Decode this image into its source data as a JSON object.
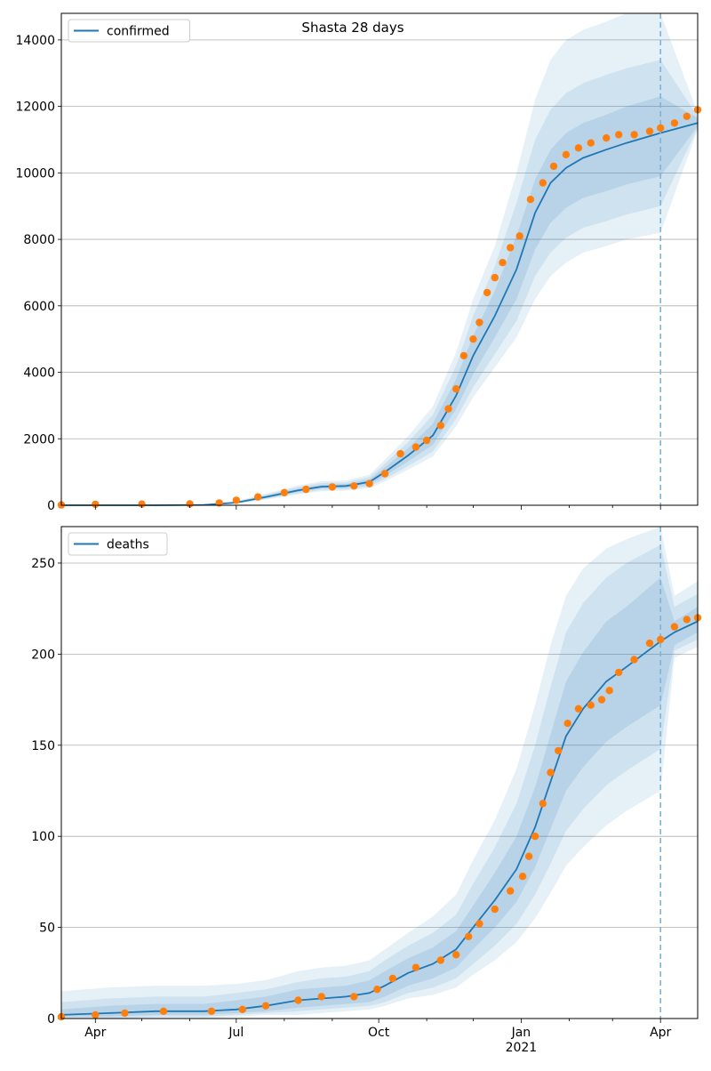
{
  "title": "Shasta 28 days",
  "colors": {
    "model_line": "#1f77b4",
    "observed_points": "#ff7f0e",
    "band": "#1f77b4",
    "forecast_marker": "#7fb3d5",
    "grid": "#b0b0b0"
  },
  "x_axis": {
    "tick_labels": [
      "Apr",
      "Jul",
      "Oct",
      "Jan",
      "Apr"
    ],
    "year_label": "2021"
  },
  "forecast_start": "2021-04-01",
  "chart_data": [
    {
      "type": "line",
      "name": "confirmed",
      "legend_label": "confirmed",
      "legend_position": "upper-left",
      "grid": "horizontal",
      "x_range": [
        "2020-03-10",
        "2021-04-25"
      ],
      "ylim": [
        0,
        14800
      ],
      "yticks": [
        0,
        2000,
        4000,
        6000,
        8000,
        10000,
        12000,
        14000
      ],
      "ytick_labels": [
        "0",
        "2000",
        "4000",
        "6000",
        "8000",
        "10000",
        "12000",
        "14000"
      ],
      "model": {
        "x": [
          "2020-03-10",
          "2020-04-10",
          "2020-05-10",
          "2020-06-10",
          "2020-07-01",
          "2020-07-20",
          "2020-08-10",
          "2020-08-25",
          "2020-09-10",
          "2020-09-25",
          "2020-10-05",
          "2020-10-20",
          "2020-11-05",
          "2020-11-20",
          "2020-12-01",
          "2020-12-15",
          "2020-12-29",
          "2021-01-10",
          "2021-01-20",
          "2021-01-30",
          "2021-02-10",
          "2021-02-25",
          "2021-03-10",
          "2021-04-01",
          "2021-04-25"
        ],
        "y": [
          0,
          0,
          0,
          10,
          80,
          250,
          450,
          560,
          580,
          700,
          1000,
          1500,
          2100,
          3300,
          4500,
          5700,
          7100,
          8800,
          9700,
          10150,
          10450,
          10700,
          10900,
          11200,
          11500
        ],
        "band_1": [
          [
            0,
            0
          ],
          [
            0,
            0
          ],
          [
            0,
            0
          ],
          [
            5,
            15
          ],
          [
            65,
            95
          ],
          [
            215,
            285
          ],
          [
            400,
            500
          ],
          [
            505,
            615
          ],
          [
            525,
            640
          ],
          [
            630,
            780
          ],
          [
            880,
            1140
          ],
          [
            1320,
            1720
          ],
          [
            1820,
            2460
          ],
          [
            2900,
            3800
          ],
          [
            3950,
            5100
          ],
          [
            5050,
            6450
          ],
          [
            6200,
            8100
          ],
          [
            7700,
            9800
          ],
          [
            8500,
            10700
          ],
          [
            8950,
            11200
          ],
          [
            9250,
            11500
          ],
          [
            9450,
            11750
          ],
          [
            9650,
            12000
          ],
          [
            9900,
            12300
          ],
          [
            11400,
            11650
          ]
        ],
        "band_2": [
          [
            0,
            0
          ],
          [
            0,
            0
          ],
          [
            0,
            0
          ],
          [
            3,
            18
          ],
          [
            55,
            110
          ],
          [
            190,
            320
          ],
          [
            360,
            550
          ],
          [
            460,
            670
          ],
          [
            480,
            690
          ],
          [
            570,
            850
          ],
          [
            790,
            1250
          ],
          [
            1180,
            1900
          ],
          [
            1620,
            2720
          ],
          [
            2600,
            4200
          ],
          [
            3550,
            5700
          ],
          [
            4550,
            7200
          ],
          [
            5550,
            9100
          ],
          [
            6900,
            11000
          ],
          [
            7600,
            11900
          ],
          [
            8050,
            12400
          ],
          [
            8350,
            12700
          ],
          [
            8550,
            12950
          ],
          [
            8750,
            13150
          ],
          [
            9000,
            13400
          ],
          [
            11350,
            11700
          ]
        ],
        "band_3": [
          [
            0,
            0
          ],
          [
            0,
            0
          ],
          [
            0,
            0
          ],
          [
            1,
            22
          ],
          [
            45,
            125
          ],
          [
            170,
            350
          ],
          [
            330,
            600
          ],
          [
            420,
            720
          ],
          [
            440,
            750
          ],
          [
            520,
            920
          ],
          [
            720,
            1370
          ],
          [
            1070,
            2080
          ],
          [
            1470,
            2980
          ],
          [
            2380,
            4600
          ],
          [
            3250,
            6200
          ],
          [
            4150,
            7800
          ],
          [
            5050,
            10000
          ],
          [
            6200,
            12200
          ],
          [
            6900,
            13400
          ],
          [
            7300,
            14000
          ],
          [
            7600,
            14300
          ],
          [
            7800,
            14550
          ],
          [
            8000,
            14800
          ],
          [
            8200,
            14800
          ],
          [
            11300,
            11800
          ]
        ]
      },
      "observed": {
        "x": [
          "2020-03-10",
          "2020-04-01",
          "2020-05-01",
          "2020-06-01",
          "2020-06-20",
          "2020-07-01",
          "2020-07-15",
          "2020-08-01",
          "2020-08-15",
          "2020-09-01",
          "2020-09-15",
          "2020-09-25",
          "2020-10-05",
          "2020-10-15",
          "2020-10-25",
          "2020-11-01",
          "2020-11-10",
          "2020-11-15",
          "2020-11-20",
          "2020-11-25",
          "2020-12-01",
          "2020-12-05",
          "2020-12-10",
          "2020-12-15",
          "2020-12-20",
          "2020-12-25",
          "2020-12-31",
          "2021-01-07",
          "2021-01-15",
          "2021-01-22",
          "2021-01-30",
          "2021-02-07",
          "2021-02-15",
          "2021-02-25",
          "2021-03-05",
          "2021-03-15",
          "2021-03-25",
          "2021-04-01",
          "2021-04-10",
          "2021-04-18",
          "2021-04-25"
        ],
        "y": [
          10,
          30,
          35,
          40,
          70,
          150,
          250,
          380,
          480,
          550,
          580,
          650,
          950,
          1550,
          1750,
          1950,
          2400,
          2900,
          3500,
          4500,
          5000,
          5500,
          6400,
          6850,
          7300,
          7750,
          8100,
          9200,
          9700,
          10200,
          10550,
          10750,
          10900,
          11050,
          11150,
          11150,
          11250,
          11350,
          11500,
          11700,
          11900
        ]
      }
    },
    {
      "type": "line",
      "name": "deaths",
      "legend_label": "deaths",
      "legend_position": "upper-left",
      "grid": "horizontal",
      "x_range": [
        "2020-03-10",
        "2021-04-25"
      ],
      "ylim": [
        0,
        270
      ],
      "yticks": [
        0,
        50,
        100,
        150,
        200,
        250
      ],
      "ytick_labels": [
        "0",
        "50",
        "100",
        "150",
        "200",
        "250"
      ],
      "model": {
        "x": [
          "2020-03-10",
          "2020-04-10",
          "2020-05-10",
          "2020-06-10",
          "2020-07-01",
          "2020-07-20",
          "2020-08-10",
          "2020-08-25",
          "2020-09-10",
          "2020-09-25",
          "2020-10-05",
          "2020-10-20",
          "2020-11-05",
          "2020-11-20",
          "2020-12-01",
          "2020-12-15",
          "2020-12-29",
          "2021-01-10",
          "2021-01-20",
          "2021-01-30",
          "2021-02-10",
          "2021-02-25",
          "2021-03-10",
          "2021-04-01",
          "2021-04-10",
          "2021-04-25"
        ],
        "y": [
          2,
          3,
          4,
          4,
          5,
          7,
          10,
          11,
          12,
          14,
          18,
          25,
          30,
          38,
          50,
          65,
          82,
          105,
          130,
          155,
          170,
          185,
          193,
          207,
          212,
          218
        ],
        "band_1": [
          [
            1,
            5
          ],
          [
            1,
            7
          ],
          [
            2,
            8
          ],
          [
            2,
            8
          ],
          [
            3,
            10
          ],
          [
            4,
            12
          ],
          [
            6,
            16
          ],
          [
            7,
            17
          ],
          [
            8,
            18
          ],
          [
            9,
            21
          ],
          [
            12,
            26
          ],
          [
            18,
            33
          ],
          [
            22,
            39
          ],
          [
            28,
            48
          ],
          [
            38,
            62
          ],
          [
            50,
            80
          ],
          [
            64,
            100
          ],
          [
            83,
            127
          ],
          [
            104,
            156
          ],
          [
            125,
            185
          ],
          [
            138,
            201
          ],
          [
            152,
            218
          ],
          [
            160,
            226
          ],
          [
            172,
            242
          ],
          [
            205,
            218
          ],
          [
            212,
            226
          ]
        ],
        "band_2": [
          [
            0,
            9
          ],
          [
            0,
            11
          ],
          [
            1,
            12
          ],
          [
            1,
            12
          ],
          [
            2,
            14
          ],
          [
            3,
            16
          ],
          [
            4,
            20
          ],
          [
            5,
            22
          ],
          [
            6,
            23
          ],
          [
            7,
            26
          ],
          [
            9,
            32
          ],
          [
            14,
            40
          ],
          [
            17,
            47
          ],
          [
            22,
            57
          ],
          [
            30,
            74
          ],
          [
            40,
            94
          ],
          [
            52,
            118
          ],
          [
            68,
            150
          ],
          [
            85,
            182
          ],
          [
            103,
            212
          ],
          [
            115,
            228
          ],
          [
            128,
            242
          ],
          [
            136,
            250
          ],
          [
            148,
            260
          ],
          [
            202,
            226
          ],
          [
            208,
            233
          ]
        ],
        "band_3": [
          [
            0,
            15
          ],
          [
            0,
            17
          ],
          [
            0,
            18
          ],
          [
            0,
            18
          ],
          [
            1,
            19
          ],
          [
            2,
            21
          ],
          [
            2,
            26
          ],
          [
            3,
            28
          ],
          [
            4,
            29
          ],
          [
            5,
            32
          ],
          [
            7,
            38
          ],
          [
            11,
            47
          ],
          [
            13,
            56
          ],
          [
            17,
            68
          ],
          [
            24,
            87
          ],
          [
            32,
            109
          ],
          [
            42,
            137
          ],
          [
            55,
            172
          ],
          [
            69,
            205
          ],
          [
            84,
            232
          ],
          [
            94,
            247
          ],
          [
            106,
            258
          ],
          [
            114,
            263
          ],
          [
            125,
            270
          ],
          [
            198,
            232
          ],
          [
            204,
            240
          ]
        ]
      },
      "observed": {
        "x": [
          "2020-03-10",
          "2020-04-01",
          "2020-04-20",
          "2020-05-15",
          "2020-06-15",
          "2020-07-05",
          "2020-07-20",
          "2020-08-10",
          "2020-08-25",
          "2020-09-15",
          "2020-09-30",
          "2020-10-10",
          "2020-10-25",
          "2020-11-10",
          "2020-11-20",
          "2020-11-28",
          "2020-12-05",
          "2020-12-15",
          "2020-12-25",
          "2021-01-02",
          "2021-01-06",
          "2021-01-10",
          "2021-01-15",
          "2021-01-20",
          "2021-01-25",
          "2021-01-31",
          "2021-02-07",
          "2021-02-15",
          "2021-02-22",
          "2021-02-27",
          "2021-03-05",
          "2021-03-15",
          "2021-03-25",
          "2021-04-01",
          "2021-04-10",
          "2021-04-18",
          "2021-04-25"
        ],
        "y": [
          1,
          2,
          3,
          4,
          4,
          5,
          7,
          10,
          12,
          12,
          16,
          22,
          28,
          32,
          35,
          45,
          52,
          60,
          70,
          78,
          89,
          100,
          118,
          135,
          147,
          162,
          170,
          172,
          175,
          180,
          190,
          197,
          206,
          208,
          215,
          219,
          220
        ]
      }
    }
  ]
}
